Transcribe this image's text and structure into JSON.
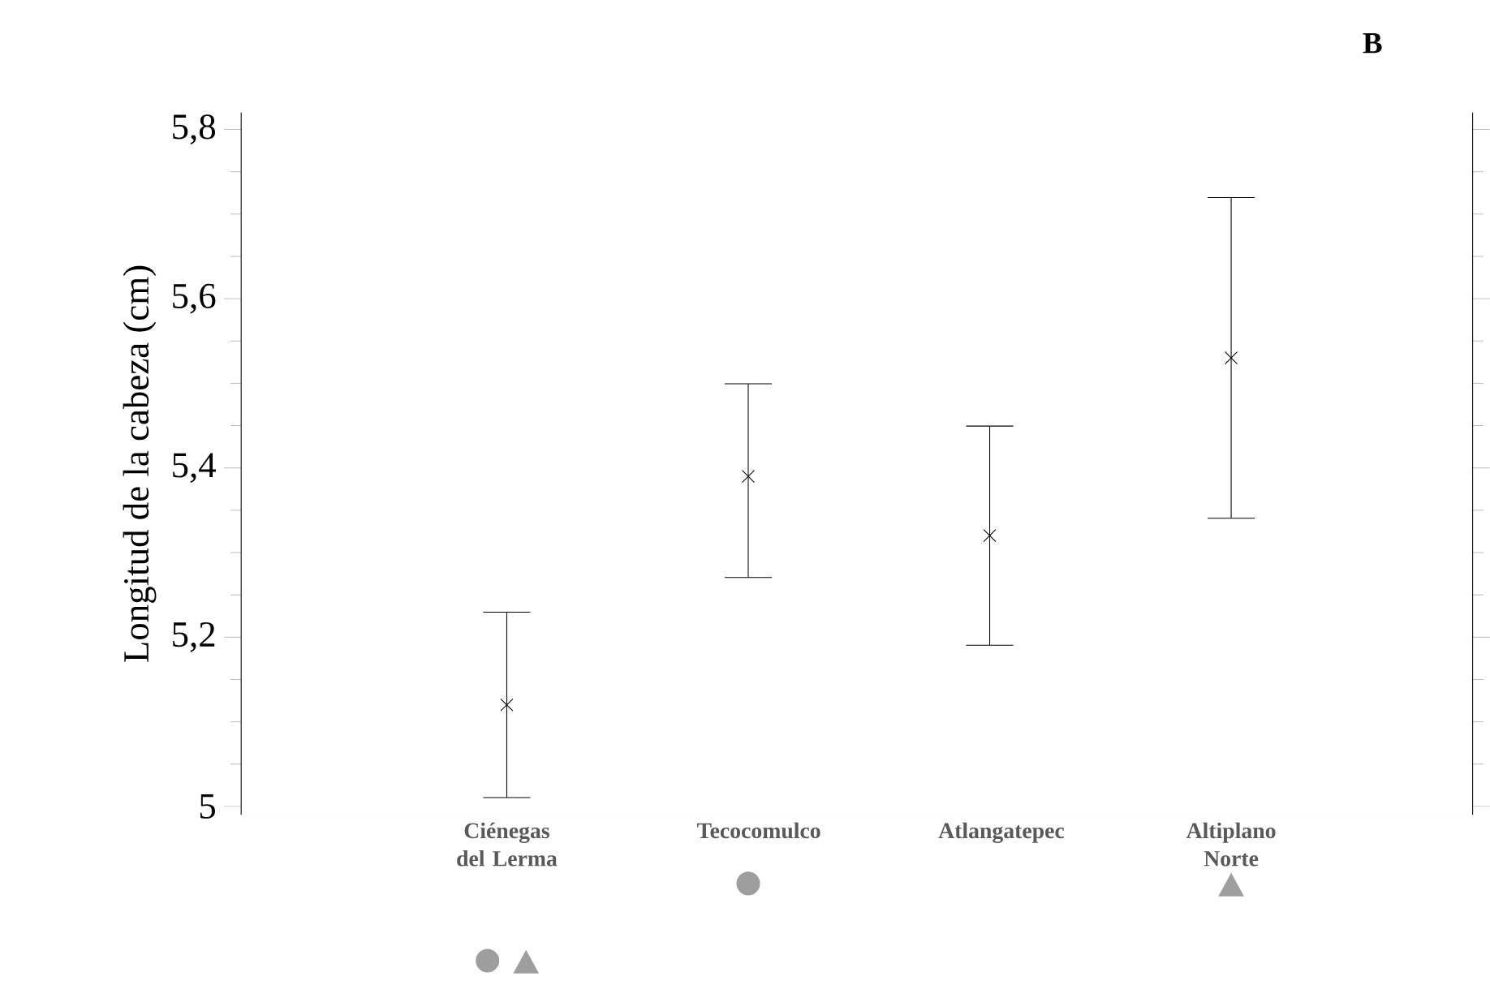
{
  "chart_data": {
    "type": "scatter",
    "ylabel": "Longitud de la cabeza (cm)",
    "categories": [
      "Ciénegas del Lerma",
      "Tecocomulco",
      "Atlangatepec",
      "Altiplano Norte"
    ],
    "values": [
      5.12,
      5.39,
      5.32,
      5.53
    ],
    "errors": [
      [
        5.01,
        5.23
      ],
      [
        5.27,
        5.5
      ],
      [
        5.19,
        5.45
      ],
      [
        5.34,
        5.72
      ]
    ],
    "color": "#000000",
    "marker": "cross",
    "ylim": [
      4.99,
      5.82
    ],
    "yticks": [
      {
        "value": 5,
        "label": "5"
      },
      {
        "value": 5.2,
        "label": "5,2"
      },
      {
        "value": 5.4,
        "label": "5,4"
      },
      {
        "value": 5.6,
        "label": "5,6"
      },
      {
        "value": 5.8,
        "label": "5,8"
      }
    ],
    "annotations": [
      "B"
    ],
    "grid": false
  }
}
